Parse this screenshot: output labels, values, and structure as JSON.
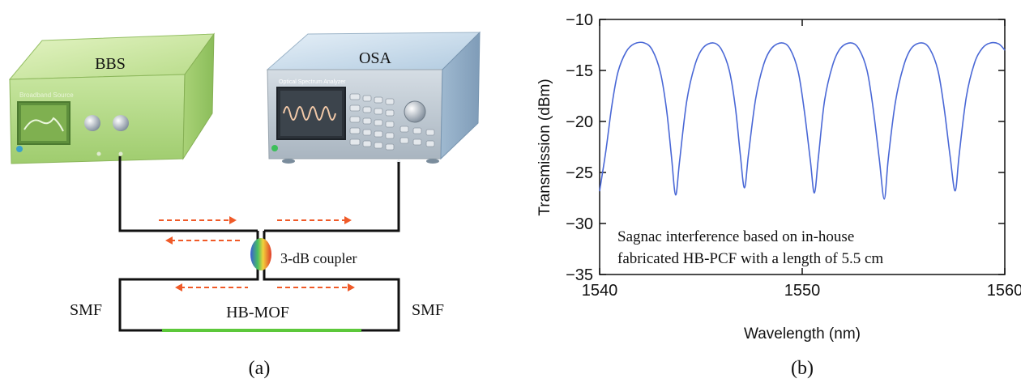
{
  "panel_a": {
    "caption": "(a)",
    "bbs_label": "BBS",
    "bbs_screen_text": "Broadband Source",
    "osa_label": "OSA",
    "osa_screen_text": "Optical Spectrum Analyzer",
    "coupler_label": "3-dB coupler",
    "smf_left_label": "SMF",
    "smf_right_label": "SMF",
    "fiber_label": "HB-MOF",
    "colors": {
      "bbs_body": "#b9dc8c",
      "osa_body": "#bcd3e6",
      "fiber_line": "#111111",
      "hbmof_segment": "#5cc83a",
      "arrow": "#f05a28"
    }
  },
  "panel_b": {
    "caption": "(b)",
    "chart_data": {
      "type": "line",
      "xlabel": "Wavelength (nm)",
      "ylabel": "Transmission (dBm)",
      "xlim": [
        1540,
        1560
      ],
      "ylim": [
        -35,
        -10
      ],
      "xticks": [
        1540,
        1550,
        1560
      ],
      "yticks": [
        -10,
        -15,
        -20,
        -25,
        -30,
        -35
      ],
      "annotation": [
        "Sagnac interference based on in-house",
        "fabricated HB-PCF with a length of 5.5 cm"
      ],
      "line_color": "#4a68d6",
      "grid": false,
      "series": [
        {
          "x": [
            1540.0,
            1540.3,
            1540.6,
            1540.9,
            1541.3,
            1541.7,
            1542.2,
            1542.6,
            1543.0,
            1543.3,
            1543.55,
            1543.75,
            1543.95,
            1544.3,
            1544.7,
            1545.1,
            1545.6,
            1546.0,
            1546.4,
            1546.7,
            1546.95,
            1547.15,
            1547.35,
            1547.7,
            1548.1,
            1548.5,
            1549.0,
            1549.4,
            1549.8,
            1550.1,
            1550.4,
            1550.6,
            1550.8,
            1551.1,
            1551.5,
            1551.9,
            1552.4,
            1552.8,
            1553.2,
            1553.5,
            1553.8,
            1554.05,
            1554.25,
            1554.6,
            1555.0,
            1555.4,
            1555.9,
            1556.3,
            1556.7,
            1557.0,
            1557.3,
            1557.55,
            1557.75,
            1558.1,
            1558.5,
            1558.9,
            1559.3,
            1559.7,
            1560.0
          ],
          "y": [
            -26.8,
            -23.0,
            -18.5,
            -15.2,
            -13.2,
            -12.4,
            -12.3,
            -13.0,
            -15.2,
            -18.8,
            -23.5,
            -27.2,
            -23.8,
            -18.0,
            -14.5,
            -12.8,
            -12.3,
            -12.9,
            -15.0,
            -18.6,
            -23.4,
            -26.5,
            -23.2,
            -17.8,
            -14.4,
            -12.8,
            -12.3,
            -12.9,
            -15.1,
            -18.9,
            -23.8,
            -27.0,
            -23.5,
            -18.0,
            -14.5,
            -12.8,
            -12.3,
            -12.9,
            -15.0,
            -18.7,
            -23.6,
            -27.6,
            -23.6,
            -18.1,
            -14.6,
            -12.8,
            -12.3,
            -12.9,
            -15.0,
            -18.6,
            -23.4,
            -26.8,
            -23.2,
            -17.6,
            -14.3,
            -12.8,
            -12.3,
            -12.4,
            -13.0
          ]
        }
      ]
    }
  }
}
